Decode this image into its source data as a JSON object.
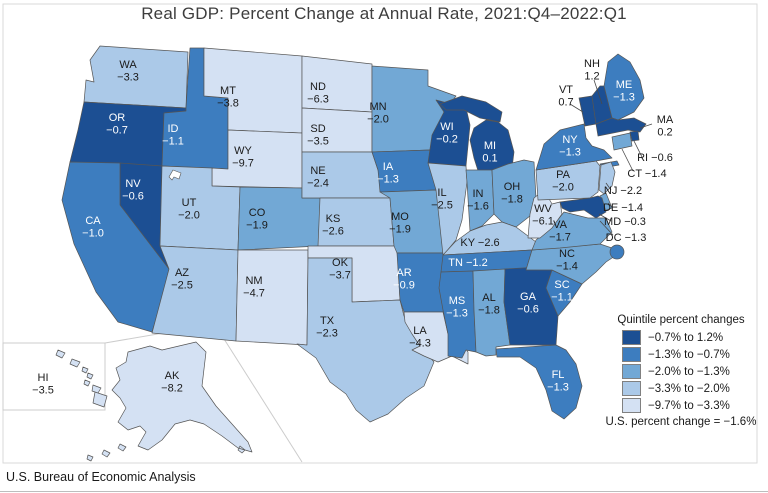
{
  "title": "Real GDP: Percent Change at Annual Rate, 2021:Q4–2022:Q1",
  "source_caption": "U.S. Bureau of Economic Analysis",
  "legend": {
    "title": "Quintile percent changes",
    "items": [
      {
        "label": "−0.7% to 1.2%",
        "color": "#1C4F93"
      },
      {
        "label": "−1.3% to −0.7%",
        "color": "#3D7DBF"
      },
      {
        "label": "−2.0% to −1.3%",
        "color": "#72A8D5"
      },
      {
        "label": "−3.3% to −2.0%",
        "color": "#ABC9E8"
      },
      {
        "label": "−9.7% to −3.3%",
        "color": "#D4E1F3"
      }
    ],
    "footnote": "U.S. percent change = −1.6%"
  },
  "map": {
    "states": [
      {
        "abbr": "WA",
        "value": "−3.3",
        "quintile": 4
      },
      {
        "abbr": "OR",
        "value": "−0.7",
        "quintile": 1
      },
      {
        "abbr": "CA",
        "value": "−1.0",
        "quintile": 2
      },
      {
        "abbr": "NV",
        "value": "−0.6",
        "quintile": 1
      },
      {
        "abbr": "ID",
        "value": "−1.1",
        "quintile": 2
      },
      {
        "abbr": "MT",
        "value": "−3.8",
        "quintile": 5
      },
      {
        "abbr": "WY",
        "value": "−9.7",
        "quintile": 5
      },
      {
        "abbr": "UT",
        "value": "−2.0",
        "quintile": 4
      },
      {
        "abbr": "CO",
        "value": "−1.9",
        "quintile": 3
      },
      {
        "abbr": "AZ",
        "value": "−2.5",
        "quintile": 4
      },
      {
        "abbr": "NM",
        "value": "−4.7",
        "quintile": 5
      },
      {
        "abbr": "ND",
        "value": "−6.3",
        "quintile": 5
      },
      {
        "abbr": "SD",
        "value": "−3.5",
        "quintile": 5
      },
      {
        "abbr": "NE",
        "value": "−2.4",
        "quintile": 4
      },
      {
        "abbr": "KS",
        "value": "−2.6",
        "quintile": 4
      },
      {
        "abbr": "OK",
        "value": "−3.7",
        "quintile": 5
      },
      {
        "abbr": "TX",
        "value": "−2.3",
        "quintile": 4
      },
      {
        "abbr": "MN",
        "value": "−2.0",
        "quintile": 3
      },
      {
        "abbr": "IA",
        "value": "−1.3",
        "quintile": 2
      },
      {
        "abbr": "MO",
        "value": "−1.9",
        "quintile": 3
      },
      {
        "abbr": "AR",
        "value": "−0.9",
        "quintile": 2
      },
      {
        "abbr": "LA",
        "value": "−4.3",
        "quintile": 5
      },
      {
        "abbr": "WI",
        "value": "−0.2",
        "quintile": 1
      },
      {
        "abbr": "MI",
        "value": "0.1",
        "quintile": 1
      },
      {
        "abbr": "IL",
        "value": "−2.5",
        "quintile": 4
      },
      {
        "abbr": "IN",
        "value": "−1.6",
        "quintile": 3
      },
      {
        "abbr": "OH",
        "value": "−1.8",
        "quintile": 3
      },
      {
        "abbr": "KY",
        "value": "−2.6",
        "quintile": 4,
        "inline": true
      },
      {
        "abbr": "TN",
        "value": "−1.2",
        "quintile": 2,
        "inline": true
      },
      {
        "abbr": "MS",
        "value": "−1.3",
        "quintile": 2
      },
      {
        "abbr": "AL",
        "value": "−1.8",
        "quintile": 3
      },
      {
        "abbr": "GA",
        "value": "−0.6",
        "quintile": 1
      },
      {
        "abbr": "FL",
        "value": "−1.3",
        "quintile": 2
      },
      {
        "abbr": "SC",
        "value": "−1.1",
        "quintile": 2
      },
      {
        "abbr": "NC",
        "value": "−1.4",
        "quintile": 3
      },
      {
        "abbr": "VA",
        "value": "−1.7",
        "quintile": 3
      },
      {
        "abbr": "WV",
        "value": "−6.1",
        "quintile": 5
      },
      {
        "abbr": "PA",
        "value": "−2.0",
        "quintile": 4
      },
      {
        "abbr": "NY",
        "value": "−1.3",
        "quintile": 2
      },
      {
        "abbr": "NJ",
        "value": "−2.2",
        "quintile": 4,
        "inline": true
      },
      {
        "abbr": "DE",
        "value": "−1.4",
        "quintile": 3,
        "inline": true
      },
      {
        "abbr": "MD",
        "value": "−0.3",
        "quintile": 1,
        "inline": true
      },
      {
        "abbr": "DC",
        "value": "−1.3",
        "quintile": 2,
        "inline": true
      },
      {
        "abbr": "VT",
        "value": "0.7",
        "quintile": 1
      },
      {
        "abbr": "NH",
        "value": "1.2",
        "quintile": 1
      },
      {
        "abbr": "ME",
        "value": "−1.3",
        "quintile": 2
      },
      {
        "abbr": "MA",
        "value": "0.2",
        "quintile": 1
      },
      {
        "abbr": "RI",
        "value": "−0.6",
        "quintile": 1,
        "inline": true
      },
      {
        "abbr": "CT",
        "value": "−1.4",
        "quintile": 3,
        "inline": true
      },
      {
        "abbr": "AK",
        "value": "−8.2",
        "quintile": 5
      },
      {
        "abbr": "HI",
        "value": "−3.5",
        "quintile": 5
      }
    ]
  }
}
